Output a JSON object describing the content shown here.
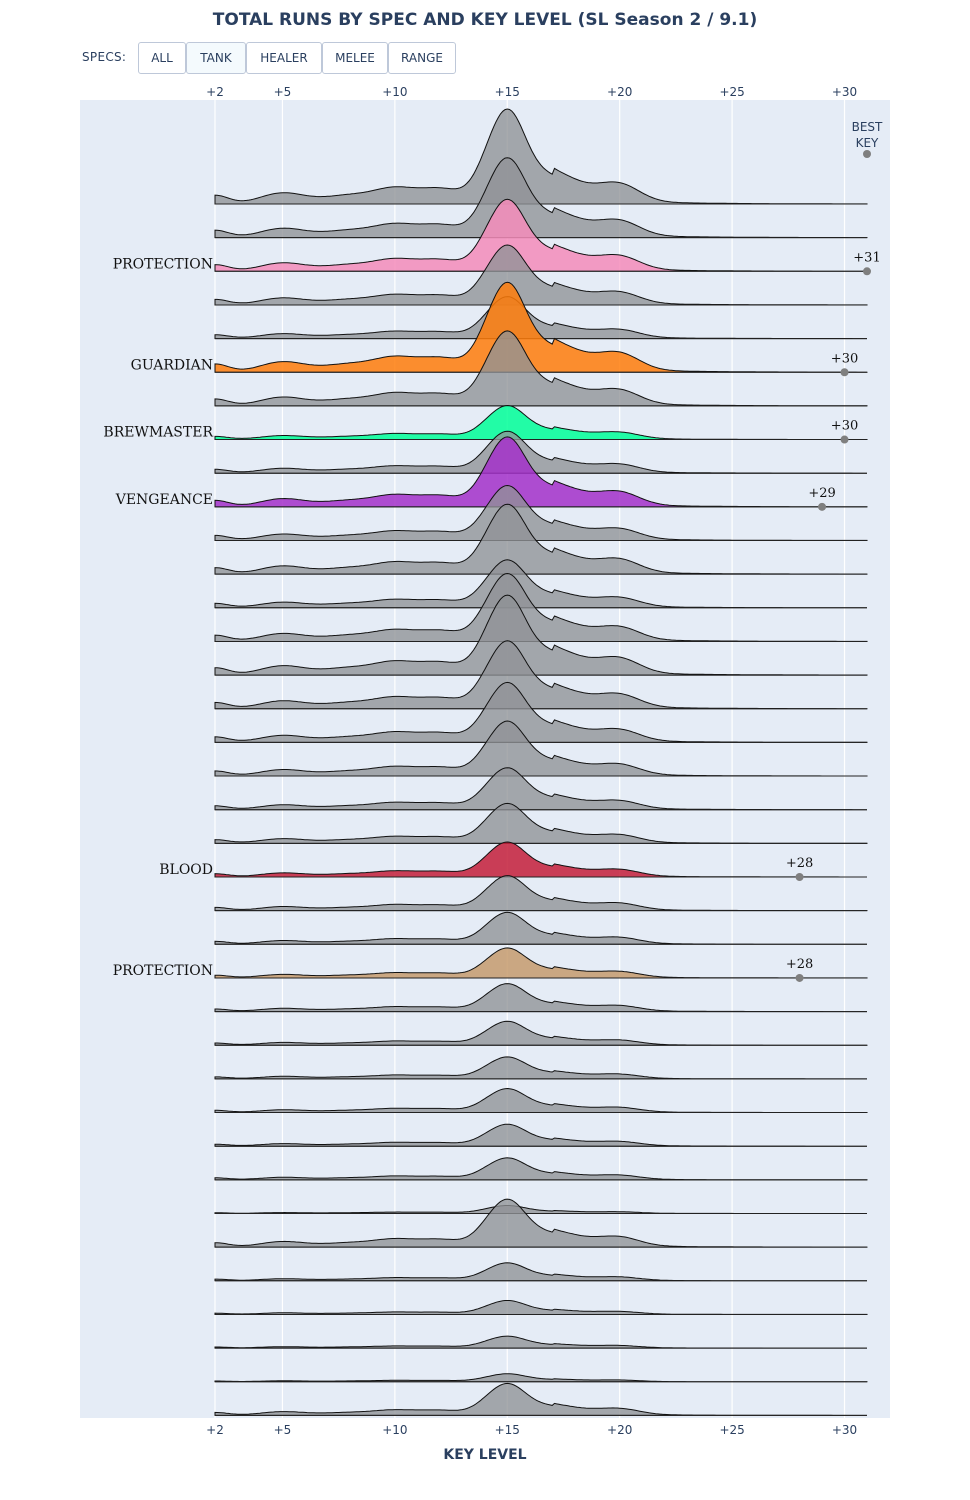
{
  "title": "TOTAL RUNS BY SPEC AND KEY LEVEL (SL Season 2 / 9.1)",
  "controls": {
    "specs_label": "SPECS:",
    "buttons": [
      {
        "label": "ALL",
        "active": false
      },
      {
        "label": "TANK",
        "active": true
      },
      {
        "label": "HEALER",
        "active": false
      },
      {
        "label": "MELEE",
        "active": false
      },
      {
        "label": "RANGE",
        "active": false
      }
    ]
  },
  "chart_data": {
    "type": "area",
    "style": "ridgeline",
    "xlabel": "KEY LEVEL",
    "x_range": [
      2,
      31
    ],
    "x_ticks": [
      2,
      5,
      10,
      15,
      20,
      25,
      30
    ],
    "x_tick_labels": [
      "+2",
      "+5",
      "+10",
      "+15",
      "+20",
      "+25",
      "+30"
    ],
    "best_key_header": [
      "BEST",
      "KEY"
    ],
    "colors": {
      "background": "#e5ecf6",
      "grey_fill": "#8f9296",
      "PROTECTION_paladin": "#f48cba",
      "GUARDIAN": "#ff7c0a",
      "BREWMASTER": "#00ff98",
      "VENGEANCE": "#a330c9",
      "BLOOD": "#c41e3a",
      "PROTECTION_warrior": "#c69b6d"
    },
    "rows": [
      {
        "peak": 95,
        "best_key": null,
        "color": null
      },
      {
        "peak": 80,
        "best_key": null,
        "color": null
      },
      {
        "peak": 72,
        "best_key": 31,
        "color": "#f48cba",
        "label": "PROTECTION",
        "best_key_label": "+31"
      },
      {
        "peak": 60,
        "best_key": null,
        "color": null
      },
      {
        "peak": 42,
        "best_key": null,
        "color": null
      },
      {
        "peak": 90,
        "best_key": 30,
        "color": "#ff7c0a",
        "label": "GUARDIAN",
        "best_key_label": "+30"
      },
      {
        "peak": 75,
        "best_key": null,
        "color": null
      },
      {
        "peak": 34,
        "best_key": 30,
        "color": "#00ff98",
        "label": "BREWMASTER",
        "best_key_label": "+30"
      },
      {
        "peak": 42,
        "best_key": null,
        "color": null
      },
      {
        "peak": 70,
        "best_key": 29,
        "color": "#a330c9",
        "label": "VENGEANCE",
        "best_key_label": "+29"
      },
      {
        "peak": 55,
        "best_key": null,
        "color": null
      },
      {
        "peak": 70,
        "best_key": null,
        "color": null
      },
      {
        "peak": 48,
        "best_key": null,
        "color": null
      },
      {
        "peak": 68,
        "best_key": null,
        "color": null
      },
      {
        "peak": 80,
        "best_key": null,
        "color": null
      },
      {
        "peak": 68,
        "best_key": null,
        "color": null
      },
      {
        "peak": 60,
        "best_key": null,
        "color": null
      },
      {
        "peak": 55,
        "best_key": null,
        "color": null
      },
      {
        "peak": 42,
        "best_key": null,
        "color": null
      },
      {
        "peak": 40,
        "best_key": null,
        "color": null
      },
      {
        "peak": 35,
        "best_key": 28,
        "color": "#c41e3a",
        "label": "BLOOD",
        "best_key_label": "+28"
      },
      {
        "peak": 35,
        "best_key": null,
        "color": null
      },
      {
        "peak": 32,
        "best_key": null,
        "color": null
      },
      {
        "peak": 30,
        "best_key": 28,
        "color": "#c69b6d",
        "label": "PROTECTION",
        "best_key_label": "+28"
      },
      {
        "peak": 28,
        "best_key": null,
        "color": null
      },
      {
        "peak": 24,
        "best_key": null,
        "color": null
      },
      {
        "peak": 22,
        "best_key": null,
        "color": null
      },
      {
        "peak": 24,
        "best_key": null,
        "color": null
      },
      {
        "peak": 22,
        "best_key": null,
        "color": null
      },
      {
        "peak": 22,
        "best_key": null,
        "color": null
      },
      {
        "peak": 8,
        "best_key": null,
        "color": null
      },
      {
        "peak": 48,
        "best_key": null,
        "color": null
      },
      {
        "peak": 18,
        "best_key": null,
        "color": null
      },
      {
        "peak": 14,
        "best_key": null,
        "color": null
      },
      {
        "peak": 12,
        "best_key": null,
        "color": null
      },
      {
        "peak": 8,
        "best_key": null,
        "color": null
      },
      {
        "peak": 32,
        "best_key": null,
        "color": null
      }
    ]
  }
}
